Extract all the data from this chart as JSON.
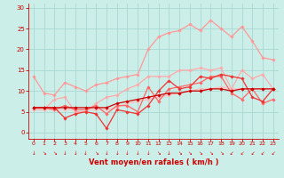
{
  "background_color": "#cceee8",
  "grid_color": "#aad8d4",
  "xlabel": "Vent moyen/en rafales ( km/h )",
  "xlabel_color": "#cc0000",
  "tick_color": "#cc0000",
  "xlim": [
    -0.5,
    23.5
  ],
  "ylim": [
    -1.5,
    31
  ],
  "yticks": [
    0,
    5,
    10,
    15,
    20,
    25,
    30
  ],
  "xticks": [
    0,
    1,
    2,
    3,
    4,
    5,
    6,
    7,
    8,
    9,
    10,
    11,
    12,
    13,
    14,
    15,
    16,
    17,
    18,
    19,
    20,
    21,
    22,
    23
  ],
  "series": [
    {
      "color": "#ffbbbb",
      "lw": 0.9,
      "x": [
        0,
        1,
        2,
        3,
        4,
        5,
        6,
        7,
        8,
        9,
        10,
        11,
        12,
        13,
        14,
        15,
        16,
        17,
        18,
        19,
        20,
        21,
        22,
        23
      ],
      "y": [
        5.5,
        5.5,
        5.5,
        5.5,
        5.5,
        5.5,
        5.5,
        5.5,
        6.0,
        7.0,
        7.5,
        8.0,
        8.5,
        9.0,
        9.5,
        10.0,
        10.5,
        10.5,
        11.0,
        10.5,
        10.5,
        10.5,
        10.5,
        10.5
      ]
    },
    {
      "color": "#ffaaaa",
      "lw": 0.9,
      "x": [
        0,
        1,
        2,
        3,
        4,
        5,
        6,
        7,
        8,
        9,
        10,
        11,
        12,
        13,
        14,
        15,
        16,
        17,
        18,
        19,
        20,
        21,
        22,
        23
      ],
      "y": [
        5.5,
        5.5,
        8.0,
        8.5,
        5.0,
        5.0,
        7.0,
        8.5,
        9.0,
        10.5,
        11.5,
        13.5,
        13.5,
        13.5,
        15.0,
        15.0,
        15.5,
        15.0,
        15.5,
        10.5,
        15.0,
        13.0,
        14.0,
        10.5
      ]
    },
    {
      "color": "#ff9999",
      "lw": 0.9,
      "x": [
        0,
        1,
        2,
        3,
        4,
        5,
        6,
        7,
        8,
        9,
        10,
        11,
        12,
        13,
        14,
        15,
        16,
        17,
        18,
        19,
        20,
        21,
        22,
        23
      ],
      "y": [
        13.5,
        9.5,
        9.0,
        12.0,
        11.0,
        10.0,
        11.5,
        12.0,
        13.0,
        13.5,
        14.0,
        20.0,
        23.0,
        24.0,
        24.5,
        26.0,
        24.5,
        27.0,
        25.0,
        23.0,
        25.5,
        22.0,
        18.0,
        17.5
      ]
    },
    {
      "color": "#ff6666",
      "lw": 0.9,
      "x": [
        0,
        1,
        2,
        3,
        4,
        5,
        6,
        7,
        8,
        9,
        10,
        11,
        12,
        13,
        14,
        15,
        16,
        17,
        18,
        19,
        20,
        21,
        22,
        23
      ],
      "y": [
        6.0,
        6.0,
        5.5,
        6.5,
        5.5,
        5.5,
        6.5,
        4.5,
        6.5,
        6.5,
        5.0,
        11.0,
        7.5,
        10.5,
        11.0,
        11.5,
        12.0,
        13.5,
        13.5,
        9.5,
        8.0,
        10.5,
        7.0,
        8.0
      ]
    },
    {
      "color": "#ee3333",
      "lw": 0.9,
      "x": [
        0,
        1,
        2,
        3,
        4,
        5,
        6,
        7,
        8,
        9,
        10,
        11,
        12,
        13,
        14,
        15,
        16,
        17,
        18,
        19,
        20,
        21,
        22,
        23
      ],
      "y": [
        6.0,
        6.0,
        6.0,
        3.5,
        4.5,
        5.0,
        4.5,
        1.0,
        5.5,
        5.0,
        4.5,
        6.5,
        10.0,
        12.5,
        10.5,
        11.0,
        13.5,
        13.0,
        14.0,
        13.5,
        13.0,
        8.5,
        7.5,
        10.5
      ]
    },
    {
      "color": "#cc0000",
      "lw": 0.9,
      "x": [
        0,
        1,
        2,
        3,
        4,
        5,
        6,
        7,
        8,
        9,
        10,
        11,
        12,
        13,
        14,
        15,
        16,
        17,
        18,
        19,
        20,
        21,
        22,
        23
      ],
      "y": [
        6.0,
        6.0,
        6.0,
        6.0,
        6.0,
        6.0,
        6.0,
        6.0,
        7.0,
        7.5,
        8.0,
        8.5,
        9.0,
        9.5,
        9.5,
        10.0,
        10.0,
        10.5,
        10.5,
        10.0,
        10.5,
        10.5,
        10.5,
        10.5
      ]
    }
  ],
  "arrows": [
    "↓",
    "↘",
    "↘",
    "↓",
    "↓",
    "↓",
    "↘",
    "↓",
    "↓",
    "↓",
    "↓",
    "↓",
    "↘",
    "↓",
    "↘",
    "↘",
    "↘",
    "↘",
    "↘",
    "↙",
    "↙",
    "↙",
    "↙",
    "↙"
  ]
}
